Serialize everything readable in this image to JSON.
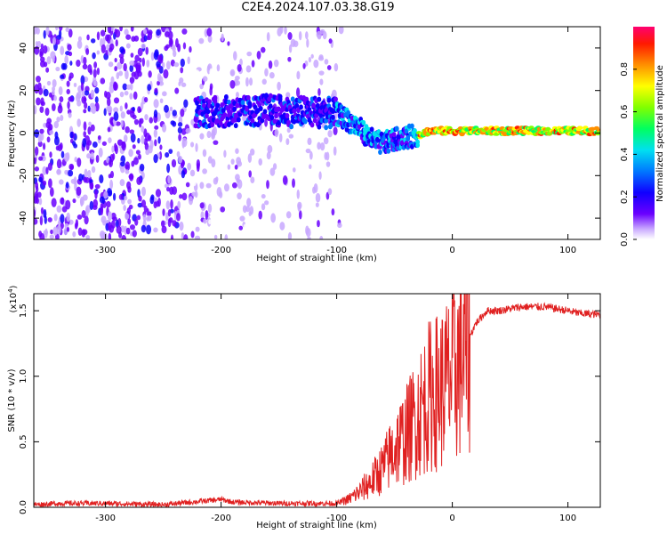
{
  "title": "C2E4.2024.107.03.38.G19",
  "chart_data": [
    {
      "type": "heatmap",
      "xlabel": "Height of straight line (km)",
      "ylabel": "Frequency (Hz)",
      "xlim": [
        -362,
        128
      ],
      "ylim": [
        -50,
        50
      ],
      "xticks": [
        -300,
        -200,
        -100,
        0,
        100
      ],
      "yticks": [
        -40,
        -20,
        0,
        20,
        40
      ],
      "colorbar": {
        "label": "Normalized spectral amplitude",
        "ticks": [
          0.0,
          0.2,
          0.4,
          0.6,
          0.8
        ],
        "range": [
          0,
          1
        ],
        "colors": [
          "#ffffff",
          "#e6d0ff",
          "#8a3cff",
          "#3a00ff",
          "#0060ff",
          "#00e8f0",
          "#00ff50",
          "#a8ff00",
          "#ffff00",
          "#ff9000",
          "#ff2000",
          "#ff0090"
        ]
      },
      "ridge": [
        {
          "x": -220,
          "y": 10
        },
        {
          "x": -200,
          "y": 10
        },
        {
          "x": -180,
          "y": 10
        },
        {
          "x": -160,
          "y": 11
        },
        {
          "x": -140,
          "y": 10
        },
        {
          "x": -120,
          "y": 10
        },
        {
          "x": -100,
          "y": 9
        },
        {
          "x": -90,
          "y": 6
        },
        {
          "x": -80,
          "y": 2
        },
        {
          "x": -70,
          "y": -3
        },
        {
          "x": -60,
          "y": -5
        },
        {
          "x": -50,
          "y": -3
        },
        {
          "x": -40,
          "y": -2
        },
        {
          "x": -30,
          "y": -1
        },
        {
          "x": -20,
          "y": 1
        },
        {
          "x": -10,
          "y": 1
        },
        {
          "x": 0,
          "y": 1
        },
        {
          "x": 20,
          "y": 1
        },
        {
          "x": 50,
          "y": 1
        },
        {
          "x": 80,
          "y": 1
        },
        {
          "x": 100,
          "y": 1
        },
        {
          "x": 128,
          "y": 1
        }
      ]
    },
    {
      "type": "line",
      "xlabel": "Height of straight line (km)",
      "ylabel": "SNR (10 * v/v)",
      "y_multiplier": "(x10",
      "y_multiplier_exp": "4",
      "xlim": [
        -362,
        128
      ],
      "ylim": [
        0,
        1.63
      ],
      "xticks": [
        -300,
        -200,
        -100,
        0,
        100
      ],
      "yticks": [
        0.0,
        0.5,
        1.0,
        1.5
      ],
      "series": [
        {
          "color": "#e02020",
          "x": [
            -362,
            -340,
            -300,
            -250,
            -200,
            -190,
            -150,
            -120,
            -100,
            -90,
            -80,
            -70,
            -60,
            -50,
            -40,
            -30,
            -20,
            -10,
            0,
            10,
            20,
            30,
            40,
            60,
            80,
            100,
            110,
            128
          ],
          "y": [
            0.02,
            0.03,
            0.03,
            0.02,
            0.06,
            0.04,
            0.03,
            0.03,
            0.03,
            0.06,
            0.12,
            0.2,
            0.3,
            0.45,
            0.55,
            0.7,
            0.85,
            0.9,
            1.0,
            1.2,
            1.4,
            1.5,
            1.5,
            1.53,
            1.53,
            1.5,
            1.48,
            1.47
          ]
        }
      ]
    }
  ]
}
